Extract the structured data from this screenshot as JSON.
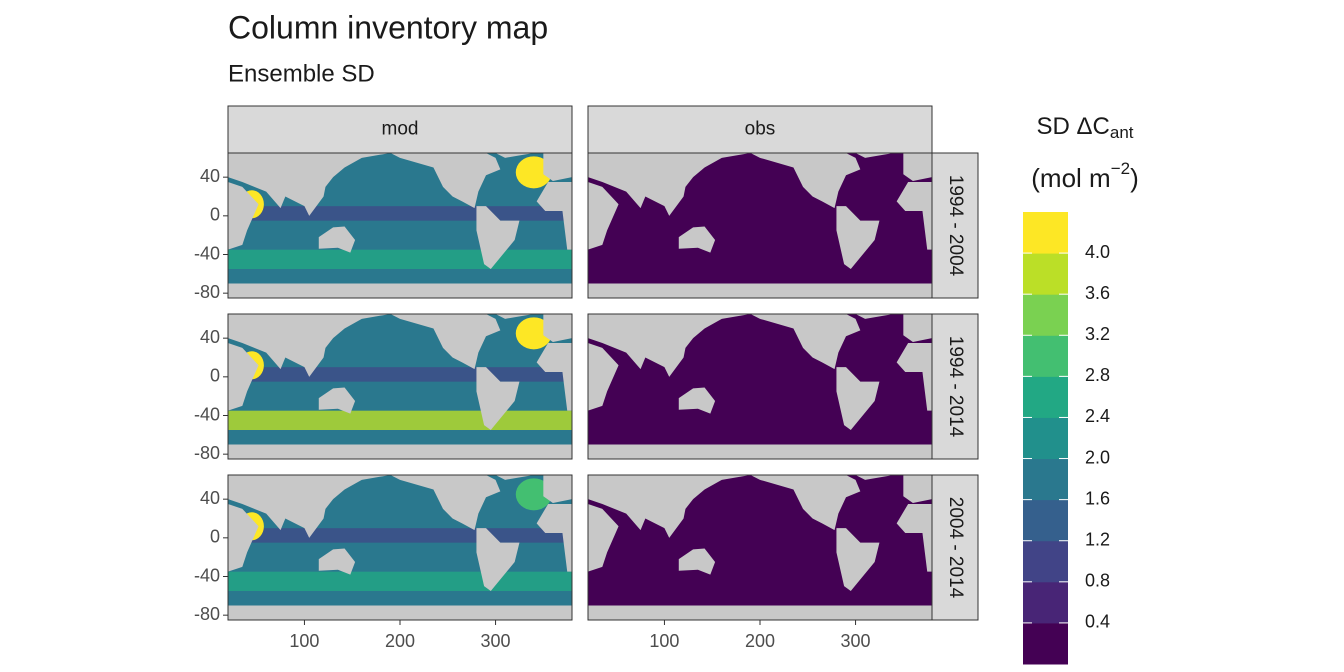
{
  "chart_data": {
    "type": "facet_map",
    "title": "Column inventory map",
    "subtitle": "Ensemble SD",
    "facet_cols": [
      "mod",
      "obs"
    ],
    "facet_rows": [
      "1994 - 2004",
      "1994 - 2014",
      "2004 - 2014"
    ],
    "xlim": [
      20,
      380
    ],
    "xticks": [
      100,
      200,
      300
    ],
    "ylim": [
      -85,
      65
    ],
    "yticks": [
      40,
      0,
      -40,
      -80
    ],
    "legend": {
      "title": "SD ΔC",
      "title_sub": "ant",
      "unit": "(mol m",
      "unit_sup": "−2",
      "unit_end": ")",
      "lim": [
        0,
        4.4
      ],
      "ticks": [
        0.4,
        0.8,
        1.2,
        1.6,
        2.0,
        2.4,
        2.8,
        3.2,
        3.6,
        4.0
      ],
      "tick_labels": [
        "0.4",
        "0.8",
        "1.2",
        "1.6",
        "2.0",
        "2.4",
        "2.8",
        "3.2",
        "3.6",
        "4.0"
      ],
      "colors": [
        "#440154",
        "#482576",
        "#414487",
        "#35608D",
        "#2A788E",
        "#21908C",
        "#22A884",
        "#43BF71",
        "#7AD151",
        "#BBDF27",
        "#FDE725"
      ]
    }
  }
}
